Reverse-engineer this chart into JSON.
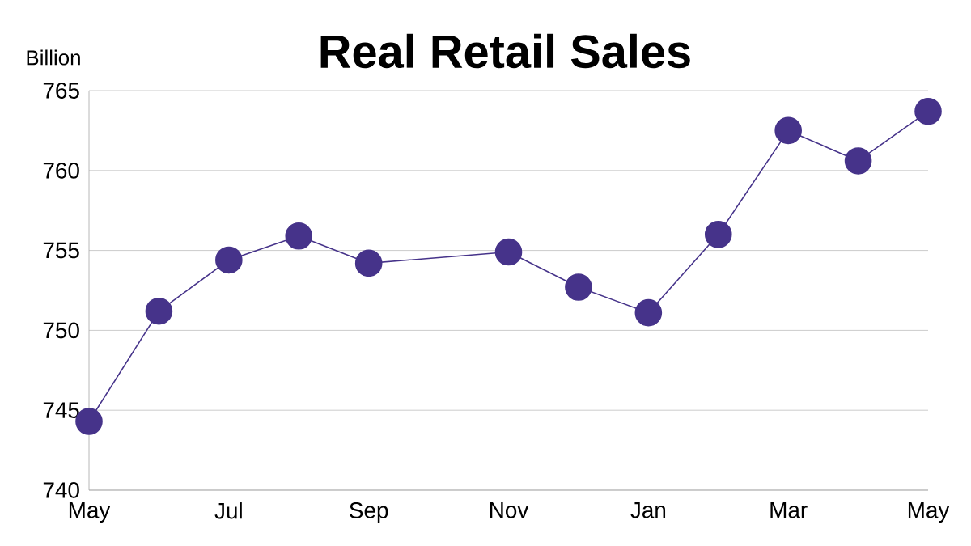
{
  "chart_data": {
    "type": "line",
    "title": "Real Retail Sales",
    "ylabel": "Billion",
    "categories": [
      "May",
      null,
      "Jul",
      null,
      "Sep",
      null,
      "Nov",
      null,
      "Jan",
      null,
      "Mar",
      null,
      "May"
    ],
    "series": [
      {
        "color": "#46338a",
        "values": [
          744.3,
          751.2,
          754.4,
          755.9,
          754.2,
          null,
          754.9,
          752.7,
          751.1,
          756.0,
          762.5,
          760.6,
          763.7
        ]
      }
    ],
    "ylim": [
      740,
      765
    ],
    "yticks": [
      740,
      745,
      750,
      755,
      760,
      765
    ],
    "grid": "y",
    "marker": "circle",
    "line_style": "solid"
  }
}
